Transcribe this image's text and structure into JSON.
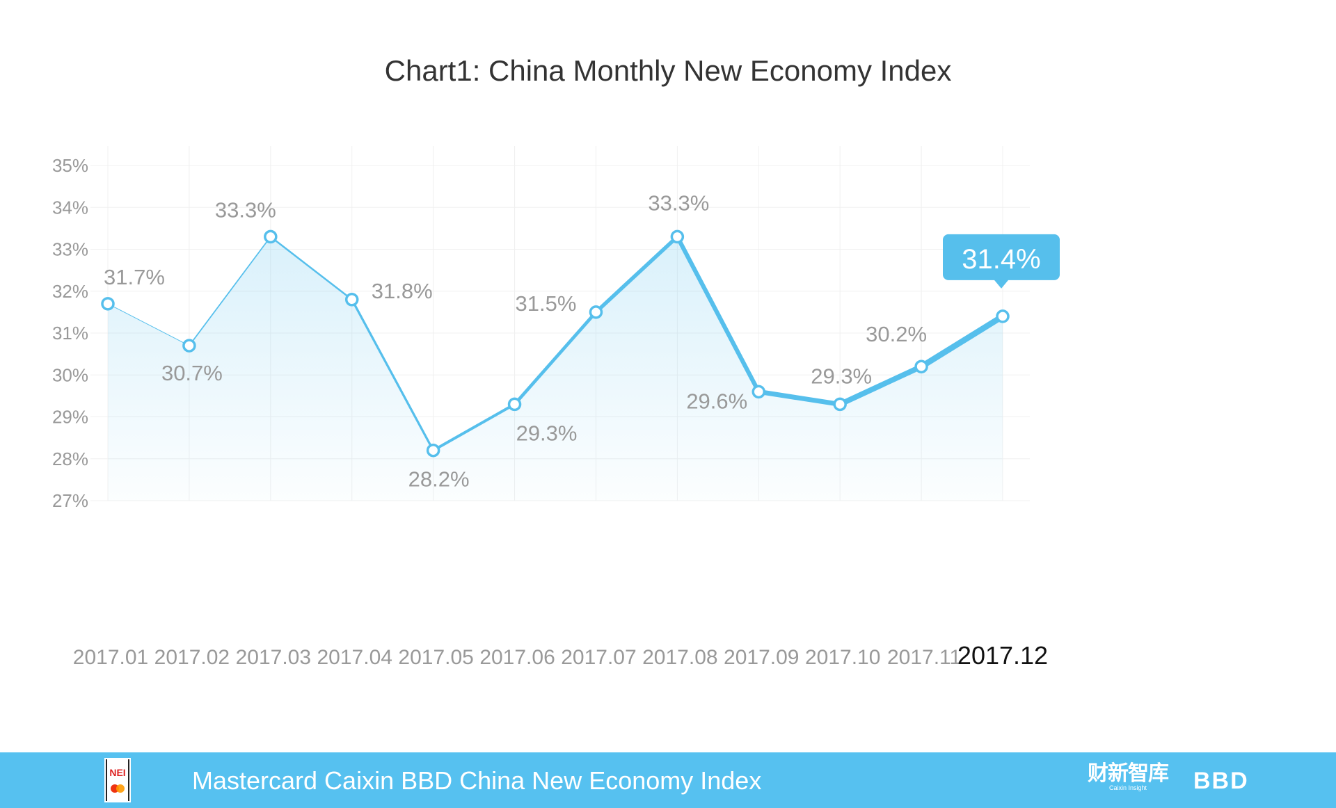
{
  "chart_data": {
    "type": "line",
    "title": "Chart1: China Monthly New Economy Index",
    "categories": [
      "2017.01",
      "2017.02",
      "2017.03",
      "2017.04",
      "2017.05",
      "2017.06",
      "2017.07",
      "2017.08",
      "2017.09",
      "2017.10",
      "2017.11",
      "2017.12"
    ],
    "values": [
      31.7,
      30.7,
      33.3,
      31.8,
      28.2,
      29.3,
      31.5,
      33.3,
      29.6,
      29.3,
      30.2,
      31.4
    ],
    "data_labels": [
      "31.7%",
      "30.7%",
      "33.3%",
      "31.8%",
      "28.2%",
      "29.3%",
      "31.5%",
      "33.3%",
      "29.6%",
      "29.3%",
      "30.2%",
      "31.4%"
    ],
    "yticks": [
      "27%",
      "28%",
      "29%",
      "30%",
      "31%",
      "32%",
      "33%",
      "34%",
      "35%"
    ],
    "ylim": [
      27,
      35
    ],
    "grid": true,
    "area_fill": true,
    "highlighted_point": "2017.12",
    "colors": {
      "line": "#56bfec",
      "label": "#999999",
      "footer": "#56c1f0",
      "highlight_text": "#111111"
    }
  },
  "footer": {
    "title": "Mastercard Caixin BBD China New Economy Index",
    "logo_nei": "NEI",
    "logo_caixin_cn": "财新智库",
    "logo_caixin_en": "Caixin Insight",
    "logo_bbd": "BBD"
  }
}
